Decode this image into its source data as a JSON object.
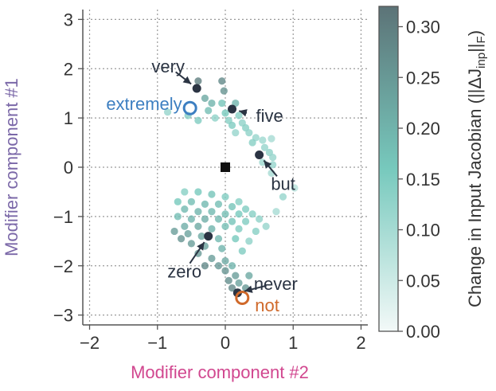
{
  "chart_data": {
    "type": "scatter",
    "xlabel": "Modifier component #2",
    "ylabel": "Modifier component #1",
    "xlim": [
      -2.1,
      2.1
    ],
    "ylim": [
      -3.2,
      3.2
    ],
    "xticks": [
      -2,
      -1,
      0,
      1,
      2
    ],
    "yticks": [
      -3,
      -2,
      -1,
      0,
      1,
      2,
      3
    ],
    "xtick_labels": [
      "−2",
      "−1",
      "0",
      "1",
      "2"
    ],
    "ytick_labels": [
      "−3",
      "−2",
      "−1",
      "0",
      "1",
      "2",
      "3"
    ],
    "grid": true,
    "colors": {
      "xlabel": "#d1478f",
      "ylabel": "#7b68a8",
      "word_dark": "#2b3443",
      "word_blue": "#3d7fc1",
      "word_orange": "#d0692a"
    },
    "colorbar": {
      "label": "Change in Input Jacobian (||ΔJ",
      "label_sub": "inp",
      "label_end": "||",
      "label_sub2": "F",
      "label_close": ")",
      "range": [
        0.0,
        0.32
      ],
      "ticks": [
        "0.00",
        "0.05",
        "0.10",
        "0.15",
        "0.20",
        "0.25",
        "0.30"
      ],
      "tick_values": [
        0.0,
        0.05,
        0.1,
        0.15,
        0.2,
        0.25,
        0.3
      ],
      "color_low": "#f3f9f8",
      "color_mid": "#77c9bd",
      "color_high": "#5c7377"
    },
    "origin_marker": {
      "x": 0.0,
      "y": 0.0,
      "shape": "square"
    },
    "labeled_words": [
      {
        "word": "very",
        "x": -0.42,
        "y": 1.6,
        "style": "filled"
      },
      {
        "word": "extremely",
        "x": -0.52,
        "y": 1.2,
        "style": "ring-blue"
      },
      {
        "word": "five",
        "x": 0.1,
        "y": 1.18,
        "style": "filled"
      },
      {
        "word": "but",
        "x": 0.5,
        "y": 0.25,
        "style": "filled"
      },
      {
        "word": "zero",
        "x": -0.25,
        "y": -1.4,
        "style": "filled"
      },
      {
        "word": "never",
        "x": 0.18,
        "y": -2.55,
        "style": "filled"
      },
      {
        "word": "not",
        "x": 0.25,
        "y": -2.65,
        "style": "ring-orange"
      }
    ],
    "series": [
      {
        "points": [
          [
            -0.4,
            1.75,
            0.3
          ],
          [
            -0.05,
            1.75,
            0.28
          ],
          [
            -0.02,
            1.55,
            0.26
          ],
          [
            -0.3,
            1.4,
            0.22
          ],
          [
            -0.2,
            1.3,
            0.2
          ],
          [
            -0.05,
            1.3,
            0.17
          ],
          [
            0.15,
            1.3,
            0.2
          ],
          [
            -0.25,
            1.15,
            0.18
          ],
          [
            0.0,
            1.1,
            0.16
          ],
          [
            0.2,
            1.05,
            0.14
          ],
          [
            -0.85,
            1.12,
            0.12
          ],
          [
            -0.55,
            1.05,
            0.14
          ],
          [
            -0.4,
            0.95,
            0.15
          ],
          [
            -0.15,
            1.0,
            0.13
          ],
          [
            0.05,
            0.95,
            0.14
          ],
          [
            0.25,
            0.9,
            0.13
          ],
          [
            0.1,
            0.85,
            0.15
          ],
          [
            0.3,
            0.8,
            0.14
          ],
          [
            0.15,
            0.7,
            0.12
          ],
          [
            0.35,
            0.7,
            0.13
          ],
          [
            0.45,
            0.6,
            0.12
          ],
          [
            0.55,
            0.55,
            0.11
          ],
          [
            0.68,
            0.58,
            0.1
          ],
          [
            0.4,
            0.5,
            0.14
          ],
          [
            0.58,
            0.4,
            0.12
          ],
          [
            0.65,
            0.3,
            0.13
          ],
          [
            0.7,
            0.2,
            0.12
          ],
          [
            0.55,
            0.1,
            0.11
          ],
          [
            0.7,
            0.05,
            0.12
          ],
          [
            0.68,
            -0.12,
            0.1
          ],
          [
            1.02,
            -0.42,
            0.08
          ],
          [
            0.85,
            -0.6,
            0.12
          ],
          [
            -0.6,
            -0.5,
            0.14
          ],
          [
            -0.4,
            -0.5,
            0.16
          ],
          [
            -0.2,
            -0.55,
            0.17
          ],
          [
            0.0,
            -0.6,
            0.15
          ],
          [
            0.2,
            -0.7,
            0.14
          ],
          [
            -0.7,
            -0.7,
            0.16
          ],
          [
            -0.5,
            -0.7,
            0.18
          ],
          [
            -0.3,
            -0.75,
            0.19
          ],
          [
            -0.1,
            -0.75,
            0.18
          ],
          [
            0.1,
            -0.8,
            0.17
          ],
          [
            0.3,
            -0.85,
            0.15
          ],
          [
            -0.6,
            -0.85,
            0.19
          ],
          [
            -0.4,
            -0.9,
            0.2
          ],
          [
            -0.2,
            -0.9,
            0.19
          ],
          [
            0.0,
            -0.95,
            0.18
          ],
          [
            0.2,
            -0.95,
            0.16
          ],
          [
            0.4,
            -0.95,
            0.14
          ],
          [
            -0.7,
            -1.0,
            0.18
          ],
          [
            -0.5,
            -1.05,
            0.2
          ],
          [
            -0.3,
            -1.05,
            0.21
          ],
          [
            -0.1,
            -1.05,
            0.19
          ],
          [
            0.1,
            -1.1,
            0.17
          ],
          [
            0.3,
            -1.1,
            0.15
          ],
          [
            0.5,
            -1.05,
            0.13
          ],
          [
            -0.6,
            -1.2,
            0.21
          ],
          [
            -0.4,
            -1.2,
            0.22
          ],
          [
            -0.2,
            -1.25,
            0.2
          ],
          [
            0.0,
            -1.2,
            0.18
          ],
          [
            0.2,
            -1.25,
            0.15
          ],
          [
            0.6,
            -1.2,
            0.12
          ],
          [
            0.75,
            -0.9,
            0.1
          ],
          [
            0.45,
            -1.3,
            0.14
          ],
          [
            -0.55,
            -1.35,
            0.23
          ],
          [
            -0.35,
            -1.4,
            0.22
          ],
          [
            -0.1,
            -1.45,
            0.19
          ],
          [
            0.15,
            -1.45,
            0.16
          ],
          [
            0.35,
            -1.5,
            0.13
          ],
          [
            -0.5,
            -1.55,
            0.24
          ],
          [
            -0.3,
            -1.6,
            0.23
          ],
          [
            -0.05,
            -1.65,
            0.2
          ],
          [
            0.25,
            -1.7,
            0.15
          ],
          [
            -0.4,
            -1.75,
            0.25
          ],
          [
            -0.2,
            -1.85,
            0.24
          ],
          [
            0.0,
            -1.9,
            0.22
          ],
          [
            -0.1,
            -2.0,
            0.25
          ],
          [
            0.1,
            -2.0,
            0.2
          ],
          [
            0.0,
            -2.1,
            0.26
          ],
          [
            0.15,
            -2.2,
            0.24
          ],
          [
            0.05,
            -2.3,
            0.27
          ],
          [
            0.2,
            -2.35,
            0.23
          ],
          [
            0.1,
            -2.45,
            0.28
          ],
          [
            0.3,
            -2.45,
            0.25
          ],
          [
            -0.3,
            -2.0,
            0.28
          ],
          [
            0.35,
            -2.2,
            0.22
          ],
          [
            -0.65,
            -1.45,
            0.26
          ],
          [
            -0.75,
            -1.3,
            0.24
          ]
        ]
      }
    ]
  }
}
